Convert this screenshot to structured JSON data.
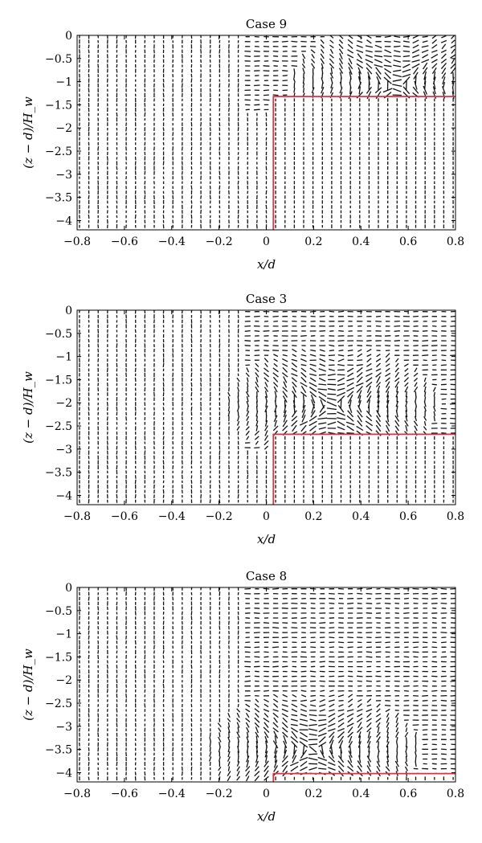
{
  "chart_data": [
    {
      "type": "vector_field",
      "title": "Case 9",
      "xlabel": "x/d",
      "ylabel": "(z − d)/H_w",
      "xlim": [
        -0.8,
        0.8
      ],
      "ylim": [
        -4.2,
        0
      ],
      "xticks": [
        -0.8,
        -0.6,
        -0.4,
        -0.2,
        0,
        0.2,
        0.4,
        0.6,
        0.8
      ],
      "xtick_labels": [
        "−0.8",
        "−0.6",
        "−0.4",
        "−0.2",
        "0",
        "0.2",
        "0.4",
        "0.6",
        "0.8"
      ],
      "yticks": [
        0,
        -0.5,
        -1,
        -1.5,
        -2,
        -2.5,
        -3,
        -3.5,
        -4
      ],
      "ytick_labels": [
        "0",
        "−0.5",
        "−1",
        "−1.5",
        "−2",
        "−2.5",
        "−3",
        "−3.5",
        "−4"
      ],
      "wall_outline": {
        "x": [
          0.03,
          0.03,
          0.8
        ],
        "y": [
          -4.2,
          -1.32,
          -1.32
        ],
        "color": "#e03040"
      },
      "vortex": {
        "x": 0.55,
        "y": -1.05
      },
      "grid": false
    },
    {
      "type": "vector_field",
      "title": "Case 3",
      "xlabel": "x/d",
      "ylabel": "(z − d)/H_w",
      "xlim": [
        -0.8,
        0.8
      ],
      "ylim": [
        -4.2,
        0
      ],
      "xticks": [
        -0.8,
        -0.6,
        -0.4,
        -0.2,
        0,
        0.2,
        0.4,
        0.6,
        0.8
      ],
      "xtick_labels": [
        "−0.8",
        "−0.6",
        "−0.4",
        "−0.2",
        "0",
        "0.2",
        "0.4",
        "0.6",
        "0.8"
      ],
      "yticks": [
        0,
        -0.5,
        -1,
        -1.5,
        -2,
        -2.5,
        -3,
        -3.5,
        -4
      ],
      "ytick_labels": [
        "0",
        "−0.5",
        "−1",
        "−1.5",
        "−2",
        "−2.5",
        "−3",
        "−3.5",
        "−4"
      ],
      "wall_outline": {
        "x": [
          0.03,
          0.03,
          0.8
        ],
        "y": [
          -4.2,
          -2.68,
          -2.68
        ],
        "color": "#e03040"
      },
      "vortex": {
        "x": 0.28,
        "y": -2.05
      },
      "grid": false
    },
    {
      "type": "vector_field",
      "title": "Case 8",
      "xlabel": "x/d",
      "ylabel": "(z − d)/H_w",
      "xlim": [
        -0.8,
        0.8
      ],
      "ylim": [
        -4.2,
        0
      ],
      "xticks": [
        -0.8,
        -0.6,
        -0.4,
        -0.2,
        0,
        0.2,
        0.4,
        0.6,
        0.8
      ],
      "xtick_labels": [
        "−0.8",
        "−0.6",
        "−0.4",
        "−0.2",
        "0",
        "0.2",
        "0.4",
        "0.6",
        "0.8"
      ],
      "yticks": [
        0,
        -0.5,
        -1,
        -1.5,
        -2,
        -2.5,
        -3,
        -3.5,
        -4
      ],
      "ytick_labels": [
        "0",
        "−0.5",
        "−1",
        "−1.5",
        "−2",
        "−2.5",
        "−3",
        "−3.5",
        "−4"
      ],
      "wall_outline": {
        "x": [
          0.03,
          0.03,
          0.8
        ],
        "y": [
          -4.2,
          -4.02,
          -4.02
        ],
        "color": "#e03040"
      },
      "vortex": {
        "x": 0.2,
        "y": -3.5
      },
      "grid": false
    }
  ]
}
